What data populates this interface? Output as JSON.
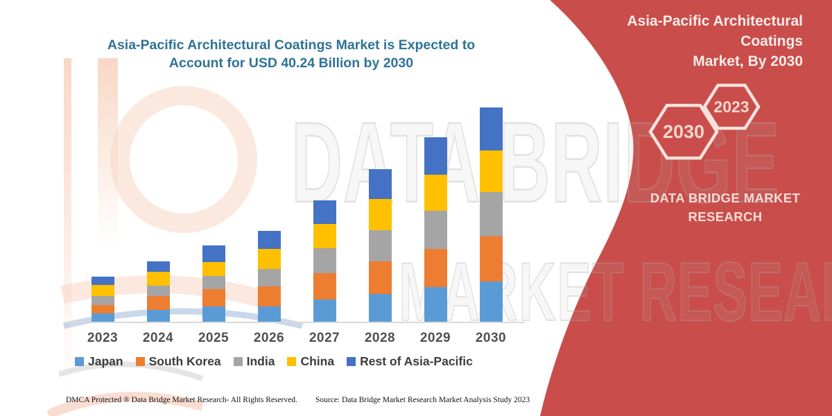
{
  "header": {
    "title_line1": "Asia-Pacific Architectural Coatings Market is Expected to",
    "title_line2": "Account for USD 40.24 Billion by 2030",
    "title_color": "#2e7396"
  },
  "right_panel": {
    "panel_color": "#c94e4b",
    "title_line1": "Asia-Pacific Architectural Coatings",
    "title_line2": "Market, By 2030",
    "hexagon_large_label": "2030",
    "hexagon_small_label": "2023",
    "brand_line1": "DATA BRIDGE MARKET",
    "brand_line2": "RESEARCH"
  },
  "watermark": {
    "line1": "DATA BRIDGE",
    "line2": "MARKET RESEARCH"
  },
  "footer": {
    "dmca": "DMCA Protected ® Data Bridge Market Research-  All Rights Reserved.",
    "source": "Source: Data Bridge Market Research  Market Analysis Study 2023"
  },
  "chart_data": {
    "type": "bar",
    "stacked": true,
    "title": "Asia-Pacific Architectural Coatings Market is Expected to Account for USD 40.24 Billion by 2030",
    "unit": "USD Billion",
    "categories": [
      "2023",
      "2024",
      "2025",
      "2026",
      "2027",
      "2028",
      "2029",
      "2030"
    ],
    "series": [
      {
        "name": "Japan",
        "color": "#5b9bd5",
        "values": [
          1.64,
          2.38,
          2.95,
          3.03,
          4.33,
          5.29,
          6.66,
          7.66
        ]
      },
      {
        "name": "South Korea",
        "color": "#ed7d31",
        "values": [
          1.61,
          2.6,
          3.25,
          3.68,
          4.94,
          6.18,
          7.05,
          8.44
        ]
      },
      {
        "name": "India",
        "color": "#a5a5a5",
        "values": [
          1.64,
          1.95,
          2.47,
          3.25,
          4.58,
          5.84,
          7.14,
          8.31
        ]
      },
      {
        "name": "China",
        "color": "#ffc000",
        "values": [
          2.08,
          2.6,
          2.69,
          3.77,
          4.64,
          5.81,
          6.84,
          7.79
        ]
      },
      {
        "name": "Rest of Asia-Pacific",
        "color": "#4472c4",
        "values": [
          1.61,
          1.95,
          3.12,
          3.47,
          4.33,
          5.62,
          6.93,
          8.04
        ]
      }
    ],
    "totals": [
      8.58,
      11.48,
      14.48,
      17.2,
      22.82,
      28.74,
      34.62,
      40.24
    ],
    "annotations": {
      "total_2030": "USD 40.24 Billion"
    },
    "legend_position": "bottom",
    "x_axis": {
      "visible": true,
      "gridlines": false
    },
    "y_axis": {
      "visible": false,
      "gridlines": false
    }
  }
}
